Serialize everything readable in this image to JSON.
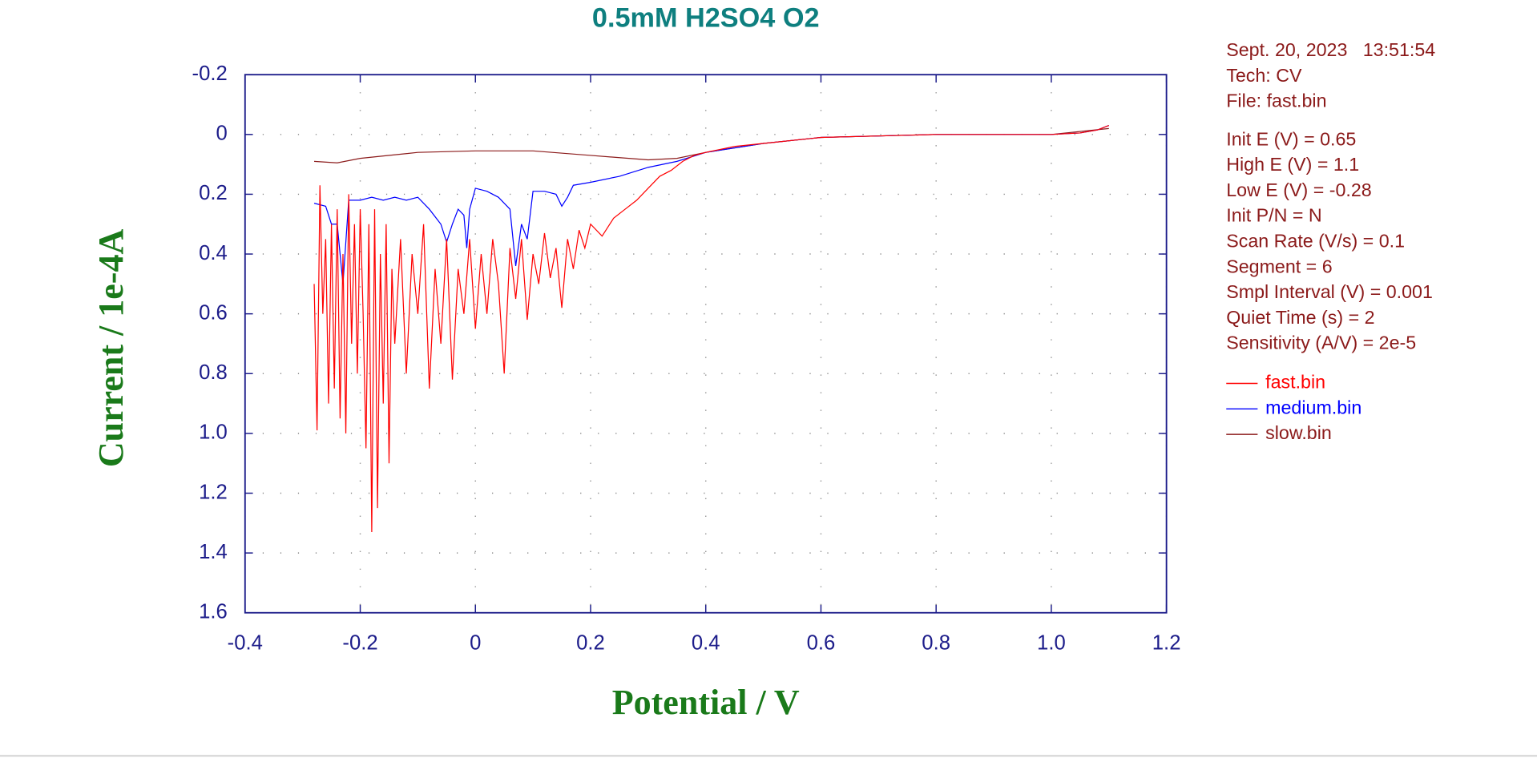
{
  "chart_data": {
    "type": "line",
    "title": "0.5mM H2SO4 O2",
    "x_label": "Potential / V",
    "y_label": "Current / 1e-4A",
    "xlim": [
      -0.4,
      1.2
    ],
    "xticks": [
      -0.4,
      -0.2,
      0,
      0.2,
      0.4,
      0.6,
      0.8,
      {
        "value": 1,
        "label": "1.0"
      },
      1.2
    ],
    "ylim": [
      -0.2,
      1.6
    ],
    "y_inverted": true,
    "yticks": [
      -0.2,
      0,
      0.2,
      0.4,
      0.6,
      0.8,
      {
        "value": 1,
        "label": "1.0"
      },
      1.2,
      1.4,
      1.6
    ],
    "grid": true,
    "info": [
      "Sept. 20, 2023   13:51:54",
      "Tech: CV",
      "File: fast.bin"
    ],
    "parameters": [
      "Init E (V) = 0.65",
      "High E (V) = 1.1",
      "Low E (V) = -0.28",
      "Init P/N = N",
      "Scan Rate (V/s) = 0.1",
      "Segment = 6",
      "Smpl Interval (V) = 0.001",
      "Quiet Time (s) = 2",
      "Sensitivity (A/V) = 2e-5"
    ],
    "series": [
      {
        "name": "fast.bin",
        "color": "#ff0000",
        "x": [
          -0.28,
          -0.275,
          -0.27,
          -0.265,
          -0.26,
          -0.255,
          -0.25,
          -0.245,
          -0.24,
          -0.235,
          -0.23,
          -0.225,
          -0.22,
          -0.215,
          -0.21,
          -0.205,
          -0.2,
          -0.195,
          -0.19,
          -0.185,
          -0.18,
          -0.175,
          -0.17,
          -0.165,
          -0.16,
          -0.155,
          -0.15,
          -0.145,
          -0.14,
          -0.13,
          -0.12,
          -0.11,
          -0.1,
          -0.09,
          -0.08,
          -0.07,
          -0.06,
          -0.05,
          -0.04,
          -0.03,
          -0.02,
          -0.01,
          0,
          0.01,
          0.02,
          0.03,
          0.04,
          0.05,
          0.06,
          0.07,
          0.08,
          0.09,
          0.1,
          0.11,
          0.12,
          0.13,
          0.14,
          0.15,
          0.16,
          0.17,
          0.18,
          0.19,
          0.2,
          0.22,
          0.24,
          0.26,
          0.28,
          0.3,
          0.32,
          0.34,
          0.36,
          0.38,
          0.4,
          0.45,
          0.5,
          0.6,
          0.7,
          0.8,
          0.9,
          1,
          1.05,
          1.08,
          1.1
        ],
        "values": [
          0.5,
          0.99,
          0.17,
          0.6,
          0.35,
          0.9,
          0.3,
          0.85,
          0.25,
          0.95,
          0.4,
          1,
          0.2,
          0.7,
          0.3,
          0.8,
          0.25,
          0.6,
          1.05,
          0.3,
          1.33,
          0.25,
          1.25,
          0.4,
          0.9,
          0.3,
          1.1,
          0.45,
          0.7,
          0.35,
          0.8,
          0.4,
          0.6,
          0.3,
          0.85,
          0.45,
          0.7,
          0.35,
          0.82,
          0.45,
          0.6,
          0.35,
          0.65,
          0.4,
          0.6,
          0.35,
          0.5,
          0.8,
          0.38,
          0.55,
          0.35,
          0.62,
          0.4,
          0.5,
          0.33,
          0.48,
          0.38,
          0.58,
          0.35,
          0.45,
          0.32,
          0.38,
          0.3,
          0.34,
          0.28,
          0.25,
          0.22,
          0.18,
          0.14,
          0.12,
          0.09,
          0.07,
          0.06,
          0.04,
          0.03,
          0.01,
          0.005,
          0,
          0,
          0,
          -0.005,
          -0.015,
          -0.03
        ]
      },
      {
        "name": "medium.bin",
        "color": "#0000ff",
        "x": [
          -0.28,
          -0.26,
          -0.25,
          -0.24,
          -0.23,
          -0.22,
          -0.2,
          -0.18,
          -0.16,
          -0.14,
          -0.12,
          -0.1,
          -0.08,
          -0.06,
          -0.05,
          -0.04,
          -0.03,
          -0.02,
          -0.015,
          -0.01,
          0,
          0.02,
          0.04,
          0.06,
          0.07,
          0.08,
          0.09,
          0.1,
          0.12,
          0.14,
          0.15,
          0.16,
          0.17,
          0.2,
          0.25,
          0.3,
          0.35,
          0.4,
          0.5,
          0.6,
          0.7,
          0.8,
          0.9,
          1,
          1.05,
          1.08,
          1.1
        ],
        "values": [
          0.23,
          0.24,
          0.3,
          0.3,
          0.5,
          0.22,
          0.22,
          0.21,
          0.22,
          0.21,
          0.22,
          0.21,
          0.25,
          0.3,
          0.36,
          0.3,
          0.25,
          0.27,
          0.38,
          0.25,
          0.18,
          0.19,
          0.21,
          0.25,
          0.44,
          0.3,
          0.35,
          0.19,
          0.19,
          0.2,
          0.24,
          0.21,
          0.17,
          0.16,
          0.14,
          0.11,
          0.09,
          0.06,
          0.03,
          0.01,
          0.005,
          0,
          0,
          0,
          -0.005,
          -0.015,
          -0.03
        ]
      },
      {
        "name": "slow.bin",
        "color": "#8b1a1a",
        "x": [
          -0.28,
          -0.24,
          -0.2,
          -0.1,
          0,
          0.1,
          0.2,
          0.3,
          0.35,
          0.4,
          0.5,
          0.6,
          0.8,
          1,
          1.1
        ],
        "values": [
          0.09,
          0.095,
          0.08,
          0.06,
          0.055,
          0.055,
          0.07,
          0.085,
          0.08,
          0.06,
          0.03,
          0.01,
          0,
          0,
          -0.02
        ]
      }
    ]
  }
}
